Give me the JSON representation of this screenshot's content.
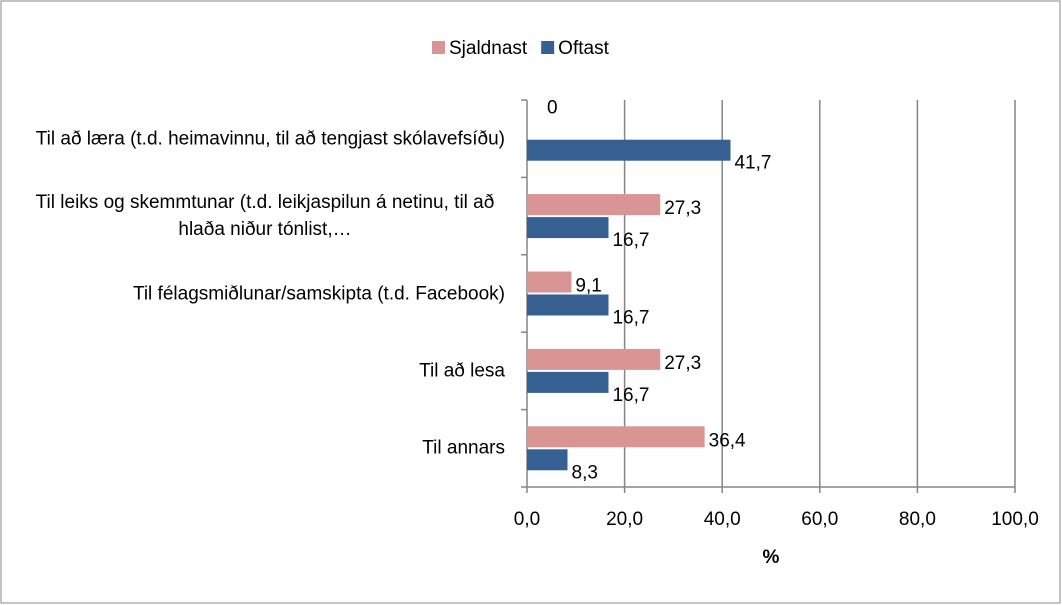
{
  "chart_data": {
    "type": "bar",
    "orientation": "horizontal",
    "categories": [
      "Til að læra (t.d. heimavinnu, til að tengjast skólavefsíðu)",
      "Til leiks og skemmtunar (t.d. leikjaspilun á netinu, til að hlaða niður tónlist,…",
      "Til félagsmiðlunar/samskipta (t.d. Facebook)",
      "Til að lesa",
      "Til annars"
    ],
    "series": [
      {
        "name": "Sjaldnast",
        "color": "#d99594",
        "values": [
          0,
          27.3,
          9.1,
          27.3,
          36.4
        ],
        "value_labels": [
          "0",
          "27,3",
          "9,1",
          "27,3",
          "36,4"
        ]
      },
      {
        "name": "Oftast",
        "color": "#376092",
        "values": [
          41.7,
          16.7,
          16.7,
          16.7,
          8.3
        ],
        "value_labels": [
          "41,7",
          "16,7",
          "16,7",
          "16,7",
          "8,3"
        ]
      }
    ],
    "x_label": "%",
    "xlim": [
      0,
      100
    ],
    "xticks": [
      {
        "value": 0,
        "label": "0,0"
      },
      {
        "value": 20,
        "label": "20,0"
      },
      {
        "value": 40,
        "label": "40,0"
      },
      {
        "value": 60,
        "label": "60,0"
      },
      {
        "value": 80,
        "label": "80,0"
      },
      {
        "value": 100,
        "label": "100,0"
      }
    ],
    "grid": true,
    "legend": "top"
  }
}
